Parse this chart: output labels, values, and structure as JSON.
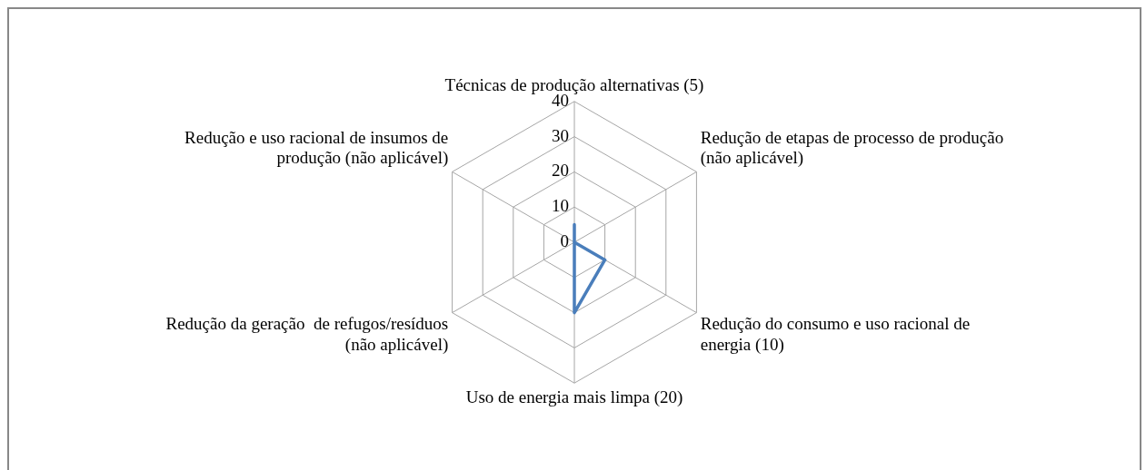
{
  "chart_data": {
    "type": "radar",
    "categories": [
      "Técnicas de produção alternativas (5)",
      "Redução de etapas de processo de produção (não aplicável)",
      "Redução do consumo e uso racional de energia (10)",
      "Uso de energia mais limpa (20)",
      "Redução da geração  de refugos/resíduos (não aplicável)",
      "Redução e uso racional de insumos de produção (não aplicável)"
    ],
    "series": [
      {
        "color": "#4a7ebb",
        "values": [
          5,
          0,
          10,
          20,
          0,
          0
        ]
      }
    ],
    "ylim": [
      0,
      40
    ],
    "yticks": [
      0,
      10,
      20,
      30,
      40
    ],
    "grid": true,
    "legend": false,
    "marker": "none"
  }
}
